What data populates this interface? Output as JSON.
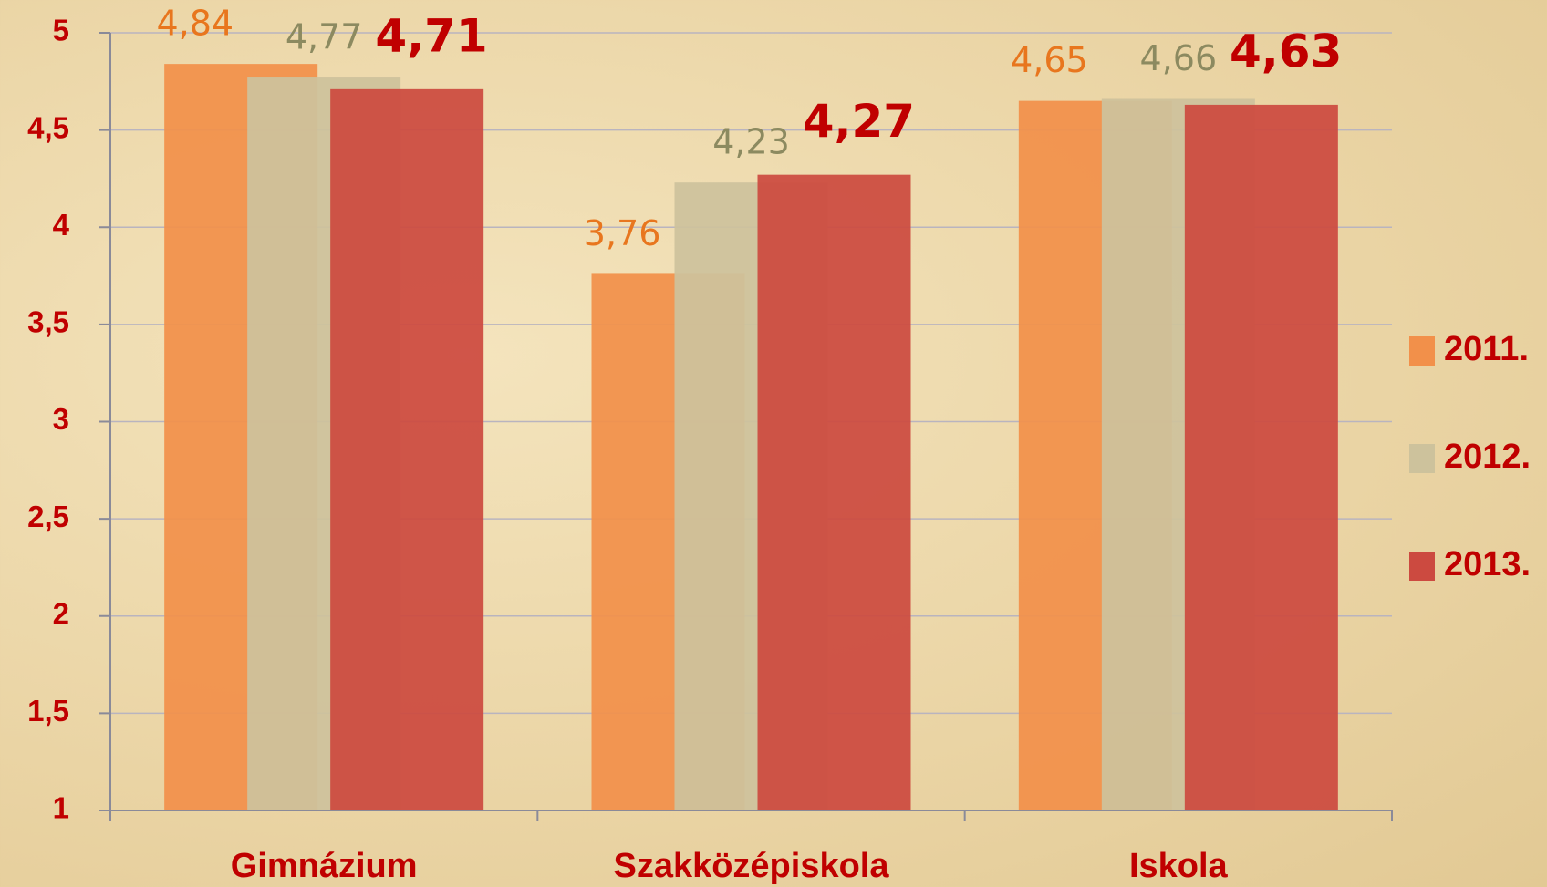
{
  "chart_data": {
    "type": "bar",
    "categories": [
      "Gimnázium",
      "Szakközépiskola",
      "Iskola"
    ],
    "series": [
      {
        "name": "2011.",
        "color": "#f2904a",
        "values": [
          4.84,
          3.76,
          4.65
        ],
        "value_labels": [
          "4,84",
          "3,76",
          "4,65"
        ]
      },
      {
        "name": "2012.",
        "color": "#cdc29c",
        "values": [
          4.77,
          4.23,
          4.66
        ],
        "value_labels": [
          "4,77",
          "4,23",
          "4,66"
        ]
      },
      {
        "name": "2013.",
        "color": "#cc4a40",
        "values": [
          4.71,
          4.27,
          4.63
        ],
        "value_labels": [
          "4,71",
          "4,27",
          "4,63"
        ]
      }
    ],
    "ylim": [
      1,
      5
    ],
    "yticks": [
      1,
      {
        "value": 1.5,
        "label": "1,5"
      },
      2,
      {
        "value": 2.5,
        "label": "2,5"
      },
      3,
      {
        "value": 3.5,
        "label": "3,5"
      },
      4,
      {
        "value": 4.5,
        "label": "4,5"
      },
      5
    ],
    "grid": true,
    "legend": "right"
  }
}
